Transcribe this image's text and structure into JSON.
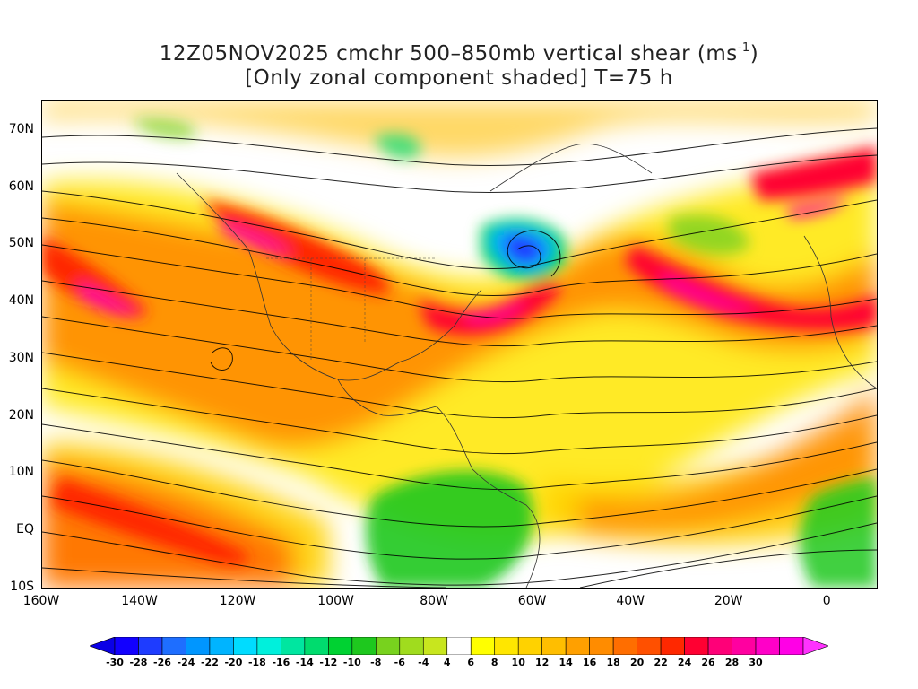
{
  "title": {
    "line1_main": "12Z05NOV2025 cmchr 500–850mb vertical shear (ms",
    "line1_sup": "-1",
    "line1_end": ")",
    "line2": "[Only zonal component shaded] T=75 h"
  },
  "map": {
    "region": "North Atlantic / North America / Eastern Pacific",
    "lat_range": [
      -10,
      75
    ],
    "lon_range": [
      -160,
      10
    ],
    "lat_ticks": [
      "70N",
      "60N",
      "50N",
      "40N",
      "30N",
      "20N",
      "10N",
      "EQ",
      "10S"
    ],
    "lat_values": [
      70,
      60,
      50,
      40,
      30,
      20,
      10,
      0,
      -10
    ],
    "lon_ticks": [
      "160W",
      "140W",
      "120W",
      "100W",
      "80W",
      "60W",
      "40W",
      "20W",
      "0"
    ],
    "lon_values": [
      -160,
      -140,
      -120,
      -100,
      -80,
      -60,
      -40,
      -20,
      0
    ],
    "overlay": "streamlines of vertical shear vector",
    "shaded_field": "zonal component of 500-850mb vertical shear (m/s)"
  },
  "colorbar": {
    "labels": [
      "-30",
      "-28",
      "-26",
      "-24",
      "-22",
      "-20",
      "-18",
      "-16",
      "-14",
      "-12",
      "-10",
      "-8",
      "-6",
      "-4",
      "4",
      "6",
      "8",
      "10",
      "12",
      "14",
      "16",
      "18",
      "20",
      "22",
      "24",
      "26",
      "28",
      "30"
    ],
    "colors": [
      "#1200ff",
      "#1e3cff",
      "#1e6eff",
      "#0096ff",
      "#00b4ff",
      "#00dcff",
      "#00f0dc",
      "#00e6a0",
      "#00dc6e",
      "#00d232",
      "#1ec81e",
      "#78d21e",
      "#a0dc1e",
      "#c8e61e",
      "#ffffff",
      "#ffff00",
      "#ffe600",
      "#ffd200",
      "#ffbe00",
      "#ffa000",
      "#ff8c00",
      "#ff6e00",
      "#ff5000",
      "#ff2800",
      "#ff0032",
      "#ff0078",
      "#ff00a0",
      "#ff00c8",
      "#ff00e6"
    ],
    "under_color": "#0a00e6",
    "over_color": "#ff32ff"
  }
}
